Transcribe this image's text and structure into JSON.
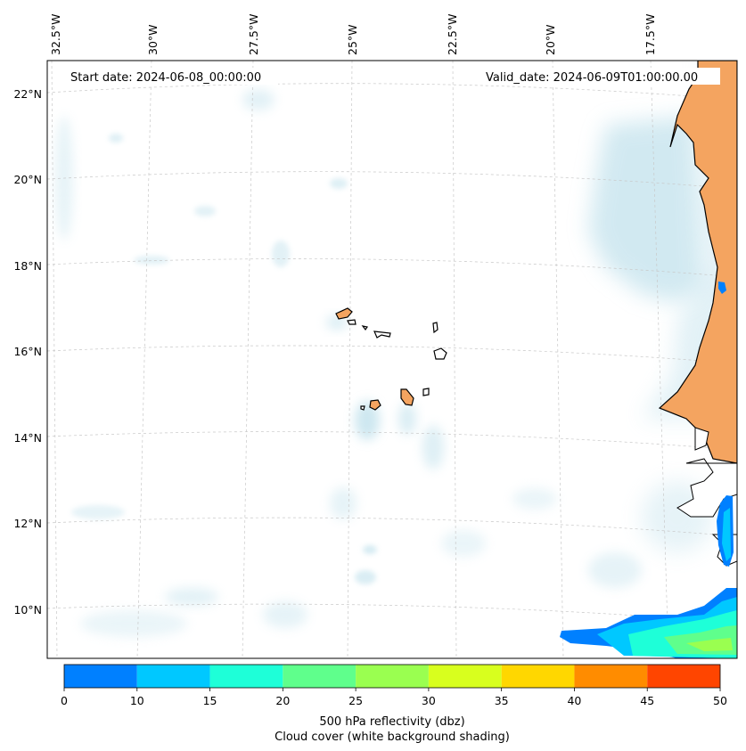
{
  "map": {
    "start_date": "Start date: 2024-06-08_00:00:00",
    "valid_date": "Valid_date: 2024-06-09T01:00:00.00",
    "lon_labels": [
      "32.5°W",
      "30°W",
      "27.5°W",
      "25°W",
      "22.5°W",
      "20°W",
      "17.5°W"
    ],
    "lat_labels": [
      "22°N",
      "20°N",
      "18°N",
      "16°N",
      "14°N",
      "12°N",
      "10°N"
    ],
    "land_color": "#f4a460",
    "cloud_color": "#add8e6"
  },
  "colorbar": {
    "levels": [
      0,
      10,
      15,
      20,
      25,
      30,
      35,
      40,
      45,
      50
    ],
    "tick_labels": [
      "0",
      "10",
      "15",
      "20",
      "25",
      "30",
      "35",
      "40",
      "45",
      "50"
    ],
    "colors": [
      "#0080ff",
      "#00c8ff",
      "#1effd8",
      "#5fff8c",
      "#9aff50",
      "#d8ff1e",
      "#ffd700",
      "#ff8c00",
      "#ff4500"
    ],
    "label_line1": "500 hPa reflectivity (dbz)",
    "label_line2": "Cloud cover (white background shading)"
  }
}
